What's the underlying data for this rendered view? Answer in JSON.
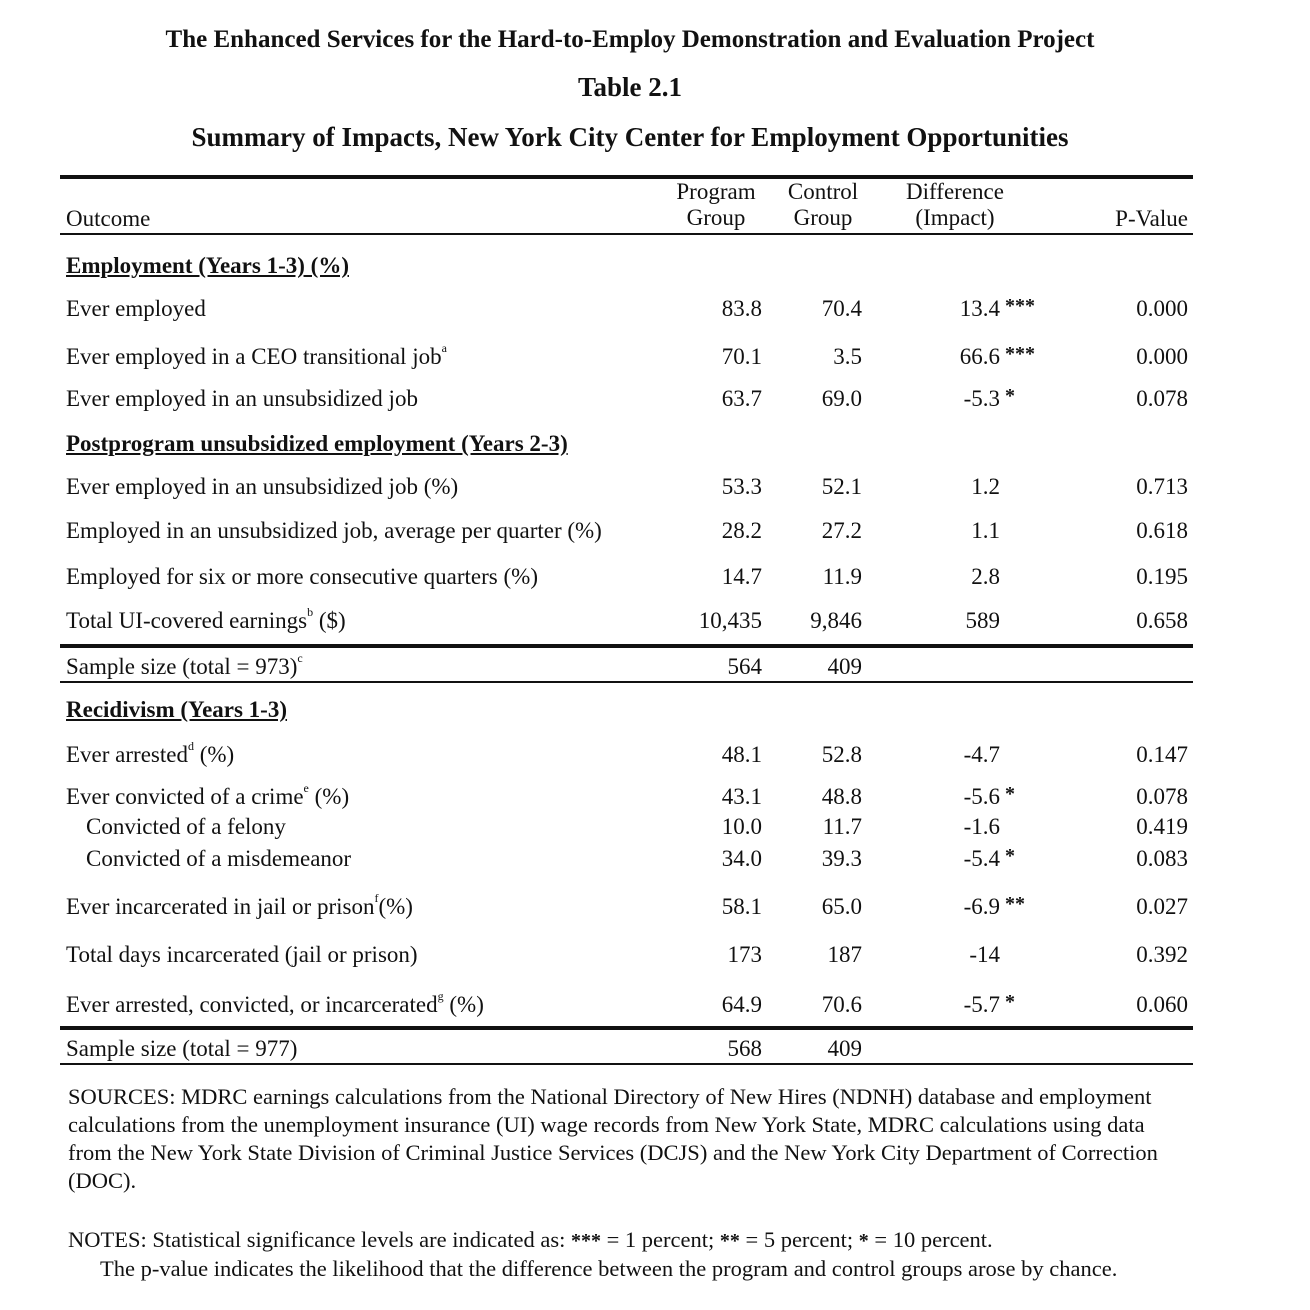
{
  "title": {
    "line1": "The Enhanced Services for the Hard-to-Employ Demonstration and Evaluation Project",
    "line2": "Table 2.1",
    "line3": "Summary of Impacts, New York City Center for Employment Opportunities"
  },
  "header": {
    "outcome": "Outcome",
    "program_line1": "Program",
    "program_line2": "Group",
    "control_line1": "Control",
    "control_line2": "Group",
    "difference_line1": "Difference",
    "difference_line2": "(Impact)",
    "pvalue": "P-Value"
  },
  "sections": [
    {
      "heading": "Employment (Years 1-3) (%)",
      "rows": [
        {
          "label": "Ever employed",
          "sup": "",
          "suffix": "",
          "program": "83.8",
          "control": "70.4",
          "difference": "13.4",
          "sig": "***",
          "pvalue": "0.000"
        },
        {
          "label": "Ever employed in a CEO transitional job",
          "sup": "a",
          "suffix": "",
          "program": "70.1",
          "control": "3.5",
          "difference": "66.6",
          "sig": "***",
          "pvalue": "0.000"
        },
        {
          "label": "Ever employed in an unsubsidized job",
          "sup": "",
          "suffix": "",
          "program": "63.7",
          "control": "69.0",
          "difference": "-5.3",
          "sig": "*",
          "pvalue": "0.078"
        }
      ]
    },
    {
      "heading": "Postprogram unsubsidized employment  (Years 2-3)",
      "rows": [
        {
          "label": "Ever employed in an unsubsidized job (%)",
          "sup": "",
          "suffix": "",
          "program": "53.3",
          "control": "52.1",
          "difference": "1.2",
          "sig": "",
          "pvalue": "0.713"
        },
        {
          "label": "Employed in an unsubsidized job, average per quarter (%)",
          "sup": "",
          "suffix": "",
          "program": "28.2",
          "control": "27.2",
          "difference": "1.1",
          "sig": "",
          "pvalue": "0.618"
        },
        {
          "label": "Employed for six or more consecutive quarters (%)",
          "sup": "",
          "suffix": "",
          "program": "14.7",
          "control": "11.9",
          "difference": "2.8",
          "sig": "",
          "pvalue": "0.195"
        },
        {
          "label": "Total UI-covered earnings",
          "sup": "b",
          "suffix": " ($)",
          "program": "10,435",
          "control": "9,846",
          "difference": "589",
          "sig": "",
          "pvalue": "0.658"
        }
      ],
      "sample": {
        "label": "Sample size (total = 973)",
        "sup": "c",
        "program": "564",
        "control": "409"
      }
    },
    {
      "heading": "Recidivism (Years 1-3)",
      "rows": [
        {
          "label": "Ever arrested",
          "sup": "d",
          "suffix": " (%)",
          "program": "48.1",
          "control": "52.8",
          "difference": "-4.7",
          "sig": "",
          "pvalue": "0.147"
        },
        {
          "label": "Ever convicted of a crime",
          "sup": "e",
          "suffix": " (%)",
          "program": "43.1",
          "control": "48.8",
          "difference": "-5.6",
          "sig": "*",
          "pvalue": "0.078"
        },
        {
          "label": "Convicted of a felony",
          "sup": "",
          "suffix": "",
          "program": "10.0",
          "control": "11.7",
          "difference": "-1.6",
          "sig": "",
          "pvalue": "0.419"
        },
        {
          "label": "Convicted of a misdemeanor",
          "sup": "",
          "suffix": "",
          "program": "34.0",
          "control": "39.3",
          "difference": "-5.4",
          "sig": "*",
          "pvalue": "0.083"
        },
        {
          "label": "Ever incarcerated in jail or prison",
          "sup": "f",
          "suffix": "(%)",
          "program": "58.1",
          "control": "65.0",
          "difference": "-6.9",
          "sig": "**",
          "pvalue": "0.027"
        },
        {
          "label": "Total days incarcerated (jail or prison)",
          "sup": "",
          "suffix": "",
          "program": "173",
          "control": "187",
          "difference": "-14",
          "sig": "",
          "pvalue": "0.392"
        },
        {
          "label": "Ever arrested, convicted, or incarcerated",
          "sup": "g",
          "suffix": " (%)",
          "program": "64.9",
          "control": "70.6",
          "difference": "-5.7",
          "sig": "*",
          "pvalue": "0.060"
        }
      ],
      "sample": {
        "label": "Sample size (total = 977)",
        "sup": "",
        "program": "568",
        "control": "409"
      }
    }
  ],
  "sources": "SOURCES: MDRC earnings calculations from the National Directory of New Hires (NDNH) database and employment calculations from the unemployment insurance (UI) wage records from New York State, MDRC calculations using data from the New York State Division of Criminal Justice Services (DCJS) and the New York City Department of Correction (DOC).",
  "notes": {
    "prefix": "NOTES: Statistical significance levels are indicated as: ",
    "s3": "***",
    "t3": " = 1 percent; ",
    "s2": "**",
    "t2": " = 5 percent; ",
    "s1": "*",
    "t1": " = 10 percent.",
    "line2": "The p-value indicates the likelihood that the difference between the program and control groups arose by chance."
  }
}
